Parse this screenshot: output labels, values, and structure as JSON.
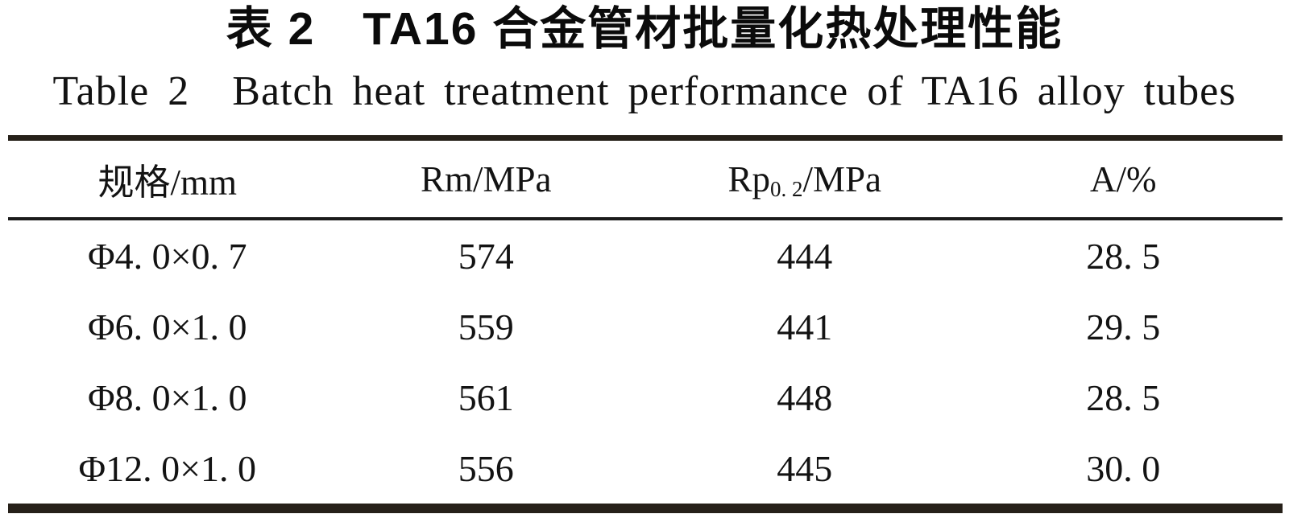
{
  "titles": {
    "chinese": "表 2　TA16 合金管材批量化热处理性能",
    "english": "Table 2　Batch heat treatment performance of TA16 alloy tubes"
  },
  "table": {
    "columns": {
      "0": {
        "label": "规格/mm"
      },
      "1": {
        "label": "Rm/MPa"
      },
      "2": {
        "base": "Rp",
        "sub": "0. 2",
        "rest": "/MPa"
      },
      "3": {
        "label": "A/%"
      }
    },
    "rows": [
      [
        "Φ4. 0×0. 7",
        "574",
        "444",
        "28. 5"
      ],
      [
        "Φ6. 0×1. 0",
        "559",
        "441",
        "29. 5"
      ],
      [
        "Φ8. 0×1. 0",
        "561",
        "448",
        "28. 5"
      ],
      [
        "Φ12. 0×1. 0",
        "556",
        "445",
        "30. 0"
      ]
    ]
  },
  "colors": {
    "rule_thick": "#262019",
    "rule_thin": "#1b1b1b",
    "text": "#131313",
    "background": "#ffffff"
  },
  "chart_data": {
    "type": "table",
    "title": "表2 TA16合金管材批量化热处理性能 (Table 2 Batch heat treatment performance of TA16 alloy tubes)",
    "columns": [
      "规格/mm",
      "Rm/MPa",
      "Rp0.2/MPa",
      "A/%"
    ],
    "rows": [
      [
        "Φ4.0×0.7",
        574,
        444,
        28.5
      ],
      [
        "Φ6.0×1.0",
        559,
        441,
        29.5
      ],
      [
        "Φ8.0×1.0",
        561,
        448,
        28.5
      ],
      [
        "Φ12.0×1.0",
        556,
        445,
        30.0
      ]
    ]
  }
}
